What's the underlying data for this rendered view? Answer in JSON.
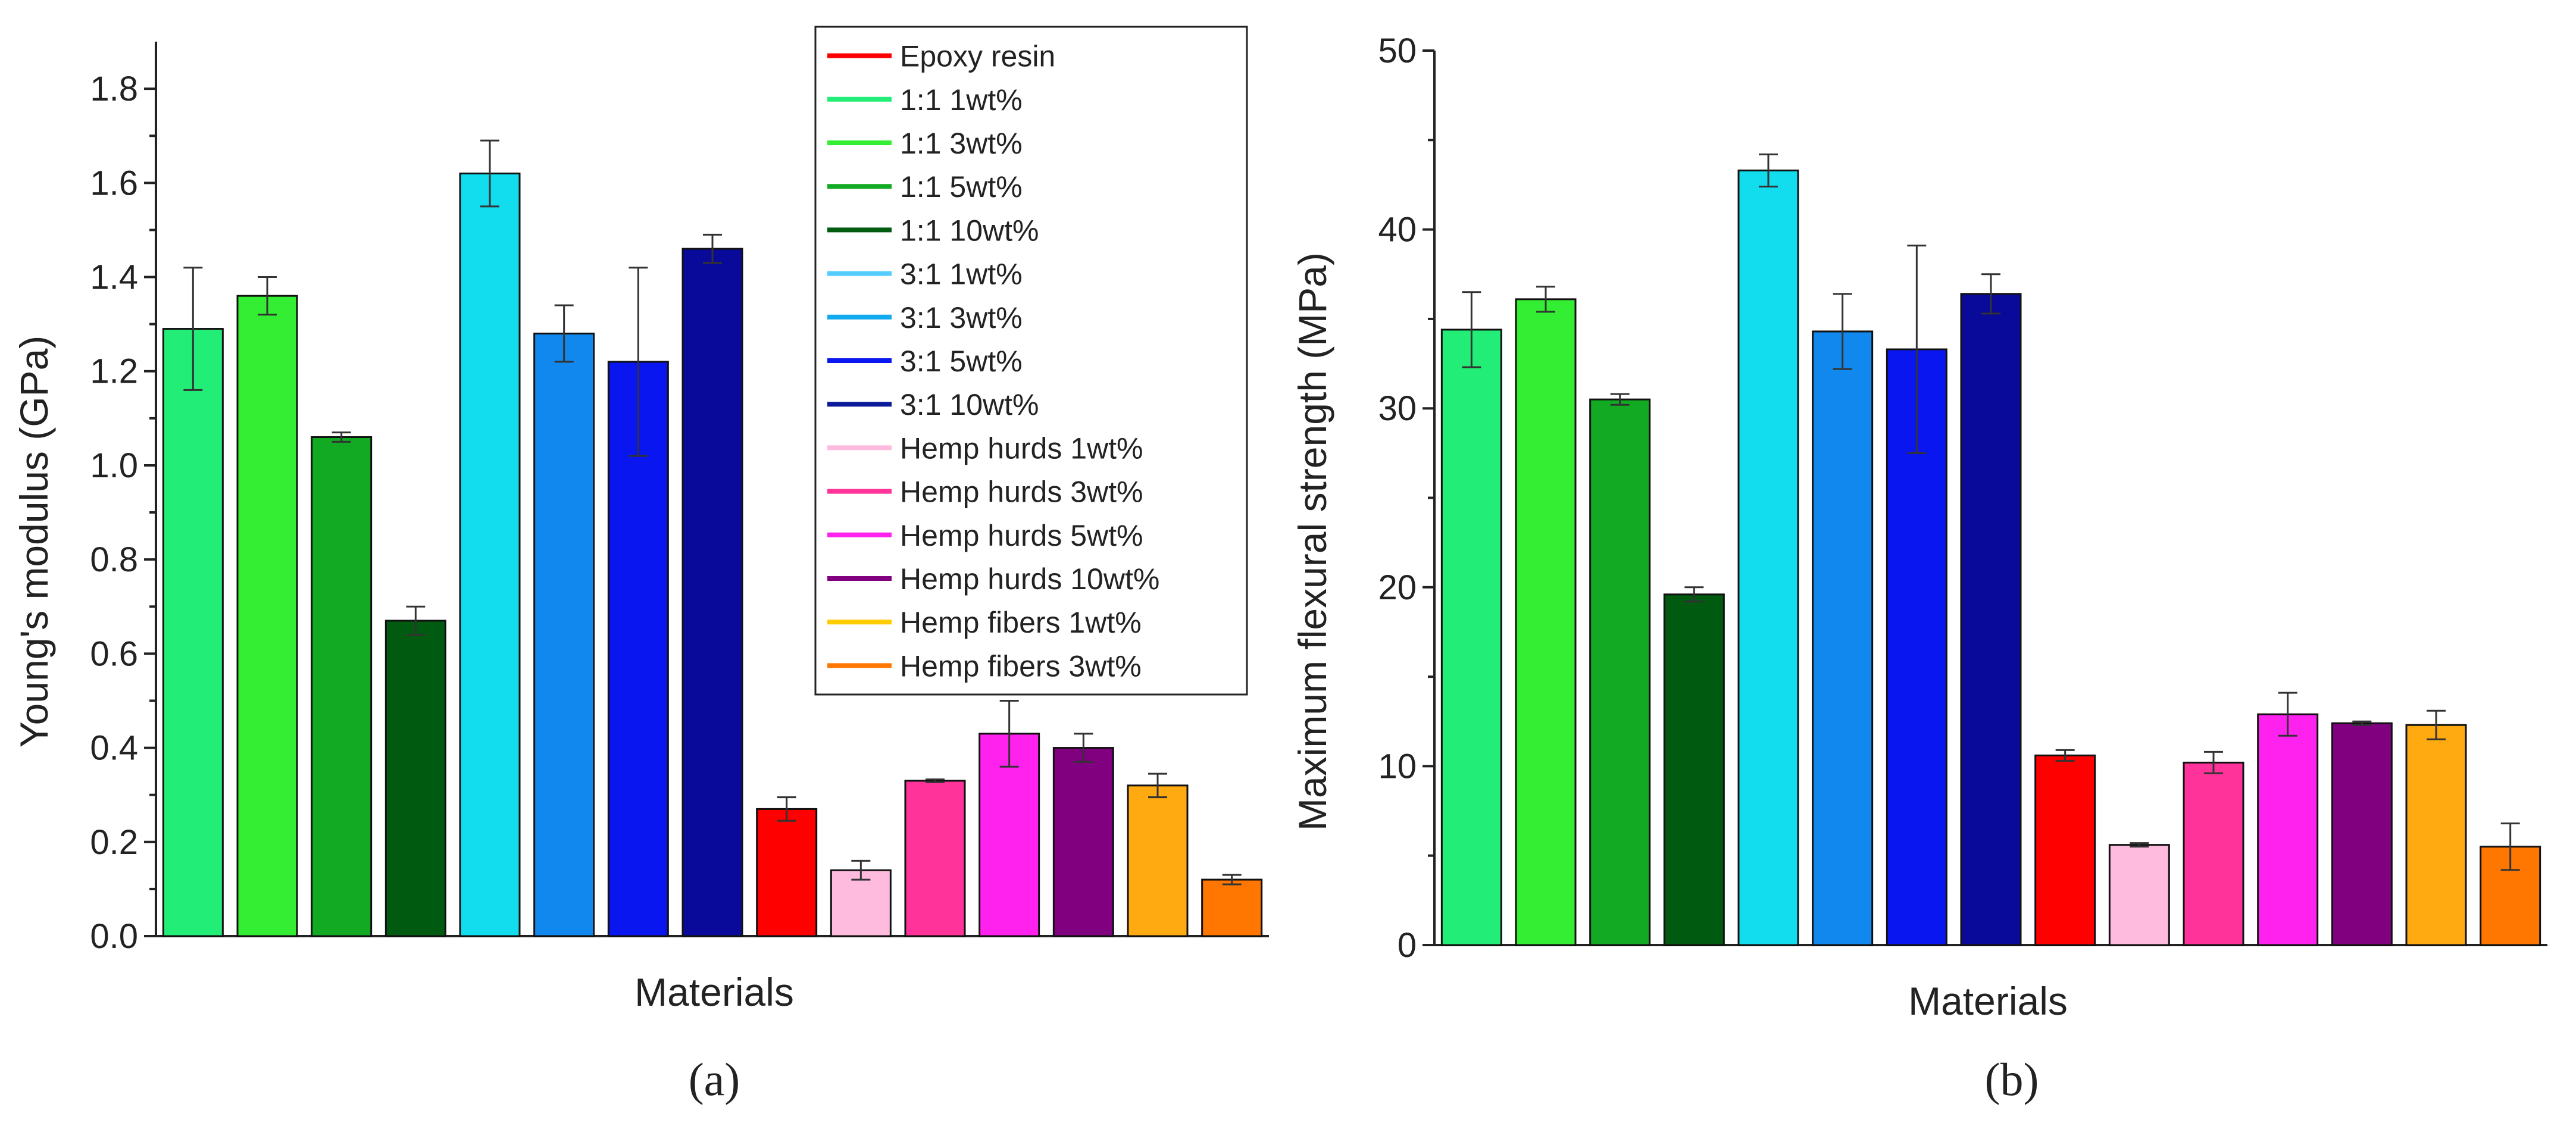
{
  "chart_data": [
    {
      "type": "bar",
      "panel_label": "(a)",
      "title": "",
      "xlabel": "Materials",
      "ylabel": "Young's modulus (GPa)",
      "ylim": [
        0,
        1.9
      ],
      "yticks": [
        "0.0",
        "0.2",
        "0.4",
        "0.6",
        "0.8",
        "1.0",
        "1.2",
        "1.4",
        "1.6",
        "1.8"
      ],
      "categories": [
        "1:1 1wt%",
        "1:1 3wt%",
        "1:1 5wt%",
        "1:1 10wt%",
        "3:1 1wt%",
        "3:1 3wt%",
        "3:1 5wt%",
        "3:1 10wt%",
        "Epoxy resin",
        "Hemp hurds 1wt%",
        "Hemp hurds 3wt%",
        "Hemp hurds 5wt%",
        "Hemp hurds 10wt%",
        "Hemp fibers 1wt%",
        "Hemp fibers 3wt%"
      ],
      "values": [
        1.29,
        1.36,
        1.06,
        0.67,
        1.62,
        1.28,
        1.22,
        1.46,
        0.27,
        0.14,
        0.33,
        0.43,
        0.4,
        0.32,
        0.12
      ],
      "errors": [
        0.13,
        0.04,
        0.01,
        0.03,
        0.07,
        0.06,
        0.2,
        0.03,
        0.025,
        0.02,
        0.003,
        0.07,
        0.03,
        0.025,
        0.01
      ],
      "colors": [
        "#22ee77",
        "#33ee33",
        "#11aa22",
        "#005a10",
        "#11ddee",
        "#1188ee",
        "#0a16f0",
        "#0a0a9a",
        "#ff0000",
        "#ffbbdd",
        "#ff3399",
        "#ff22ee",
        "#800080",
        "#ffaa11",
        "#ff7700"
      ]
    },
    {
      "type": "bar",
      "panel_label": "(b)",
      "title": "",
      "xlabel": "Materials",
      "ylabel": "Maximum flexural strength (MPa)",
      "ylim": [
        0,
        50
      ],
      "yticks": [
        "0",
        "10",
        "20",
        "30",
        "40",
        "50"
      ],
      "categories": [
        "1:1 1wt%",
        "1:1 3wt%",
        "1:1 5wt%",
        "1:1 10wt%",
        "3:1 1wt%",
        "3:1 3wt%",
        "3:1 5wt%",
        "3:1 10wt%",
        "Epoxy resin",
        "Hemp hurds 1wt%",
        "Hemp hurds 3wt%",
        "Hemp hurds 5wt%",
        "Hemp hurds 10wt%",
        "Hemp fibers 1wt%",
        "Hemp fibers 3wt%"
      ],
      "values": [
        34.4,
        36.1,
        30.5,
        19.6,
        43.3,
        34.3,
        33.3,
        36.4,
        10.6,
        5.6,
        10.2,
        12.9,
        12.4,
        12.3,
        5.5
      ],
      "errors": [
        2.1,
        0.7,
        0.3,
        0.4,
        0.9,
        2.1,
        5.8,
        1.1,
        0.3,
        0.1,
        0.6,
        1.2,
        0.1,
        0.8,
        1.3
      ],
      "colors": [
        "#22ee77",
        "#33ee33",
        "#11aa22",
        "#005a10",
        "#11ddee",
        "#1188ee",
        "#0a16f0",
        "#0a0a9a",
        "#ff0000",
        "#ffbbdd",
        "#ff3399",
        "#ff22ee",
        "#800080",
        "#ffaa11",
        "#ff7700"
      ]
    }
  ],
  "legend": {
    "items": [
      {
        "label": "Epoxy resin",
        "color": "#ff0000"
      },
      {
        "label": "1:1 1wt%",
        "color": "#22ee77"
      },
      {
        "label": "1:1 3wt%",
        "color": "#33ee33"
      },
      {
        "label": "1:1 5wt%",
        "color": "#11aa22"
      },
      {
        "label": "1:1 10wt%",
        "color": "#005a10"
      },
      {
        "label": "3:1 1wt%",
        "color": "#55ccff"
      },
      {
        "label": "3:1 3wt%",
        "color": "#11aaee"
      },
      {
        "label": "3:1 5wt%",
        "color": "#0a16f0"
      },
      {
        "label": "3:1 10wt%",
        "color": "#0a1a9a"
      },
      {
        "label": "Hemp hurds 1wt%",
        "color": "#ffbbdd"
      },
      {
        "label": "Hemp hurds 3wt%",
        "color": "#ff3399"
      },
      {
        "label": "Hemp hurds 5wt%",
        "color": "#ff22ee"
      },
      {
        "label": "Hemp hurds 10wt%",
        "color": "#800080"
      },
      {
        "label": "Hemp fibers 1wt%",
        "color": "#ffcc00"
      },
      {
        "label": "Hemp fibers 3wt%",
        "color": "#ff7700"
      }
    ]
  }
}
